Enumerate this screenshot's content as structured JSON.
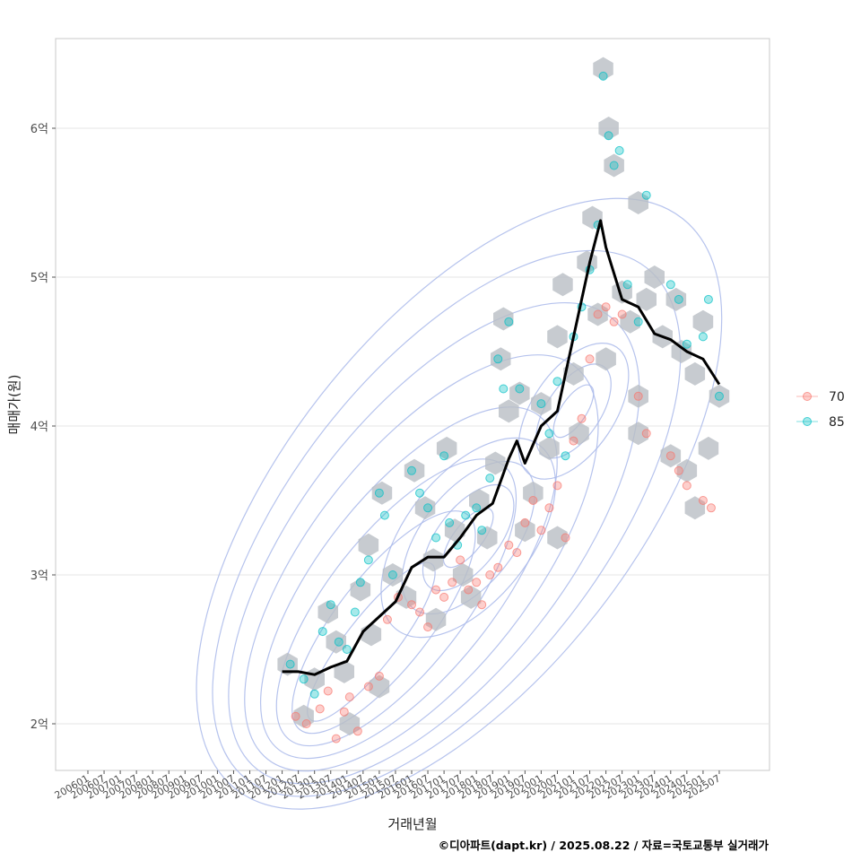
{
  "chart_data": {
    "type": "scatter",
    "xlabel": "거래년월",
    "ylabel": "매매가(원)",
    "caption": "©디아파트(dapt.kr) / 2025.08.22 / 자료=국토교통부 실거래가",
    "x_ticks": [
      "200601",
      "200607",
      "200701",
      "200707",
      "200801",
      "200807",
      "200901",
      "200907",
      "201001",
      "201007",
      "201101",
      "201107",
      "201201",
      "201207",
      "201301",
      "201307",
      "201401",
      "201407",
      "201501",
      "201507",
      "201601",
      "201607",
      "201701",
      "201707",
      "201801",
      "201807",
      "201901",
      "201907",
      "202001",
      "202007",
      "202101",
      "202107",
      "202201",
      "202207",
      "202301",
      "202307",
      "202401",
      "202407",
      "202501",
      "202507"
    ],
    "y_ticks": [
      {
        "value": 2.0,
        "label": "2억"
      },
      {
        "value": 3.0,
        "label": "3억"
      },
      {
        "value": 4.0,
        "label": "4억"
      },
      {
        "value": 5.0,
        "label": "5억"
      },
      {
        "value": 6.0,
        "label": "6억"
      }
    ],
    "ylim": [
      1.7,
      6.6
    ],
    "grid": true,
    "legend_position": "right",
    "legend": [
      {
        "label": "70",
        "color": "#F8766D"
      },
      {
        "label": "85",
        "color": "#00BFC4"
      }
    ],
    "trend_line": {
      "x": [
        "2012-01",
        "2012-07",
        "2013-01",
        "2013-07",
        "2014-01",
        "2014-07",
        "2015-01",
        "2015-07",
        "2016-01",
        "2016-07",
        "2017-01",
        "2017-07",
        "2018-01",
        "2018-07",
        "2019-01",
        "2019-04",
        "2019-07",
        "2020-01",
        "2020-07",
        "2021-01",
        "2021-07",
        "2021-11",
        "2022-01",
        "2022-07",
        "2023-01",
        "2023-07",
        "2024-01",
        "2024-07",
        "2025-01",
        "2025-07"
      ],
      "y": [
        2.35,
        2.35,
        2.33,
        2.38,
        2.42,
        2.62,
        2.72,
        2.82,
        3.05,
        3.12,
        3.12,
        3.25,
        3.4,
        3.48,
        3.78,
        3.9,
        3.75,
        4.0,
        4.1,
        4.6,
        5.1,
        5.38,
        5.2,
        4.85,
        4.8,
        4.62,
        4.58,
        4.5,
        4.45,
        4.28
      ]
    },
    "series": [
      {
        "name": "70",
        "color": "#F8766D",
        "points": [
          [
            "2012-06",
            2.05
          ],
          [
            "2012-10",
            2.0
          ],
          [
            "2013-03",
            2.1
          ],
          [
            "2013-06",
            2.22
          ],
          [
            "2013-09",
            1.9
          ],
          [
            "2013-12",
            2.08
          ],
          [
            "2014-02",
            2.18
          ],
          [
            "2014-05",
            1.95
          ],
          [
            "2014-09",
            2.25
          ],
          [
            "2015-01",
            2.32
          ],
          [
            "2015-04",
            2.7
          ],
          [
            "2015-08",
            2.85
          ],
          [
            "2016-01",
            2.8
          ],
          [
            "2016-04",
            2.75
          ],
          [
            "2016-07",
            2.65
          ],
          [
            "2016-10",
            2.9
          ],
          [
            "2017-01",
            2.85
          ],
          [
            "2017-04",
            2.95
          ],
          [
            "2017-07",
            3.1
          ],
          [
            "2017-10",
            2.9
          ],
          [
            "2018-01",
            2.95
          ],
          [
            "2018-03",
            2.8
          ],
          [
            "2018-06",
            3.0
          ],
          [
            "2018-09",
            3.05
          ],
          [
            "2019-01",
            3.2
          ],
          [
            "2019-04",
            3.15
          ],
          [
            "2019-07",
            3.35
          ],
          [
            "2019-10",
            3.5
          ],
          [
            "2020-01",
            3.3
          ],
          [
            "2020-04",
            3.45
          ],
          [
            "2020-07",
            3.6
          ],
          [
            "2020-10",
            3.25
          ],
          [
            "2021-01",
            3.9
          ],
          [
            "2021-04",
            4.05
          ],
          [
            "2021-07",
            4.45
          ],
          [
            "2021-10",
            4.75
          ],
          [
            "2022-01",
            4.8
          ],
          [
            "2022-04",
            4.7
          ],
          [
            "2022-07",
            4.75
          ],
          [
            "2023-01",
            4.2
          ],
          [
            "2023-04",
            3.95
          ],
          [
            "2024-01",
            3.8
          ],
          [
            "2024-04",
            3.7
          ],
          [
            "2024-07",
            3.6
          ],
          [
            "2025-01",
            3.5
          ],
          [
            "2025-04",
            3.45
          ]
        ]
      },
      {
        "name": "85",
        "color": "#00BFC4",
        "points": [
          [
            "2012-04",
            2.4
          ],
          [
            "2012-09",
            2.3
          ],
          [
            "2013-01",
            2.2
          ],
          [
            "2013-04",
            2.62
          ],
          [
            "2013-07",
            2.8
          ],
          [
            "2013-10",
            2.55
          ],
          [
            "2014-01",
            2.5
          ],
          [
            "2014-04",
            2.75
          ],
          [
            "2014-06",
            2.95
          ],
          [
            "2014-09",
            3.1
          ],
          [
            "2015-01",
            3.55
          ],
          [
            "2015-03",
            3.4
          ],
          [
            "2015-06",
            3.0
          ],
          [
            "2016-01",
            3.7
          ],
          [
            "2016-04",
            3.55
          ],
          [
            "2016-07",
            3.45
          ],
          [
            "2016-10",
            3.25
          ],
          [
            "2017-01",
            3.8
          ],
          [
            "2017-03",
            3.35
          ],
          [
            "2017-06",
            3.2
          ],
          [
            "2017-09",
            3.4
          ],
          [
            "2018-01",
            3.45
          ],
          [
            "2018-03",
            3.3
          ],
          [
            "2018-06",
            3.65
          ],
          [
            "2018-09",
            4.45
          ],
          [
            "2018-11",
            4.25
          ],
          [
            "2019-01",
            4.7
          ],
          [
            "2019-05",
            4.25
          ],
          [
            "2020-01",
            4.15
          ],
          [
            "2020-04",
            3.95
          ],
          [
            "2020-07",
            4.3
          ],
          [
            "2020-10",
            3.8
          ],
          [
            "2021-01",
            4.6
          ],
          [
            "2021-04",
            4.8
          ],
          [
            "2021-07",
            5.05
          ],
          [
            "2021-10",
            5.35
          ],
          [
            "2021-12",
            6.35
          ],
          [
            "2022-02",
            5.95
          ],
          [
            "2022-04",
            5.75
          ],
          [
            "2022-06",
            5.85
          ],
          [
            "2022-09",
            4.95
          ],
          [
            "2023-01",
            4.7
          ],
          [
            "2023-04",
            5.55
          ],
          [
            "2024-01",
            4.95
          ],
          [
            "2024-04",
            4.85
          ],
          [
            "2024-07",
            4.55
          ],
          [
            "2025-01",
            4.6
          ],
          [
            "2025-03",
            4.85
          ],
          [
            "2025-07",
            4.2
          ]
        ]
      }
    ],
    "hexbin_centers": [
      [
        "2012-03",
        2.4
      ],
      [
        "2012-09",
        2.05
      ],
      [
        "2013-01",
        2.3
      ],
      [
        "2013-06",
        2.75
      ],
      [
        "2013-09",
        2.55
      ],
      [
        "2013-12",
        2.35
      ],
      [
        "2014-02",
        2.0
      ],
      [
        "2014-06",
        2.9
      ],
      [
        "2014-09",
        3.2
      ],
      [
        "2014-10",
        2.6
      ],
      [
        "2015-01",
        2.25
      ],
      [
        "2015-02",
        3.55
      ],
      [
        "2015-06",
        3.0
      ],
      [
        "2015-11",
        2.85
      ],
      [
        "2016-02",
        3.7
      ],
      [
        "2016-06",
        3.45
      ],
      [
        "2016-09",
        3.1
      ],
      [
        "2016-10",
        2.7
      ],
      [
        "2017-02",
        3.85
      ],
      [
        "2017-05",
        3.3
      ],
      [
        "2017-08",
        3.0
      ],
      [
        "2017-11",
        2.85
      ],
      [
        "2018-02",
        3.5
      ],
      [
        "2018-05",
        3.25
      ],
      [
        "2018-08",
        3.75
      ],
      [
        "2018-10",
        4.45
      ],
      [
        "2018-11",
        4.72
      ],
      [
        "2019-01",
        4.1
      ],
      [
        "2019-05",
        4.22
      ],
      [
        "2019-07",
        3.3
      ],
      [
        "2019-10",
        3.55
      ],
      [
        "2020-01",
        4.15
      ],
      [
        "2020-04",
        3.85
      ],
      [
        "2020-07",
        3.25
      ],
      [
        "2020-07",
        4.6
      ],
      [
        "2020-09",
        4.95
      ],
      [
        "2021-01",
        4.35
      ],
      [
        "2021-03",
        3.95
      ],
      [
        "2021-06",
        5.1
      ],
      [
        "2021-08",
        5.4
      ],
      [
        "2021-10",
        4.75
      ],
      [
        "2021-12",
        6.4
      ],
      [
        "2022-01",
        4.45
      ],
      [
        "2022-02",
        6.0
      ],
      [
        "2022-04",
        5.75
      ],
      [
        "2022-07",
        4.9
      ],
      [
        "2022-10",
        4.7
      ],
      [
        "2023-01",
        5.5
      ],
      [
        "2023-01",
        4.2
      ],
      [
        "2023-01",
        3.95
      ],
      [
        "2023-04",
        4.85
      ],
      [
        "2023-07",
        5.0
      ],
      [
        "2023-10",
        4.6
      ],
      [
        "2024-01",
        3.8
      ],
      [
        "2024-03",
        4.85
      ],
      [
        "2024-05",
        4.5
      ],
      [
        "2024-07",
        3.7
      ],
      [
        "2024-10",
        4.35
      ],
      [
        "2024-10",
        3.45
      ],
      [
        "2025-01",
        4.7
      ],
      [
        "2025-03",
        3.85
      ],
      [
        "2025-07",
        4.2
      ]
    ]
  }
}
